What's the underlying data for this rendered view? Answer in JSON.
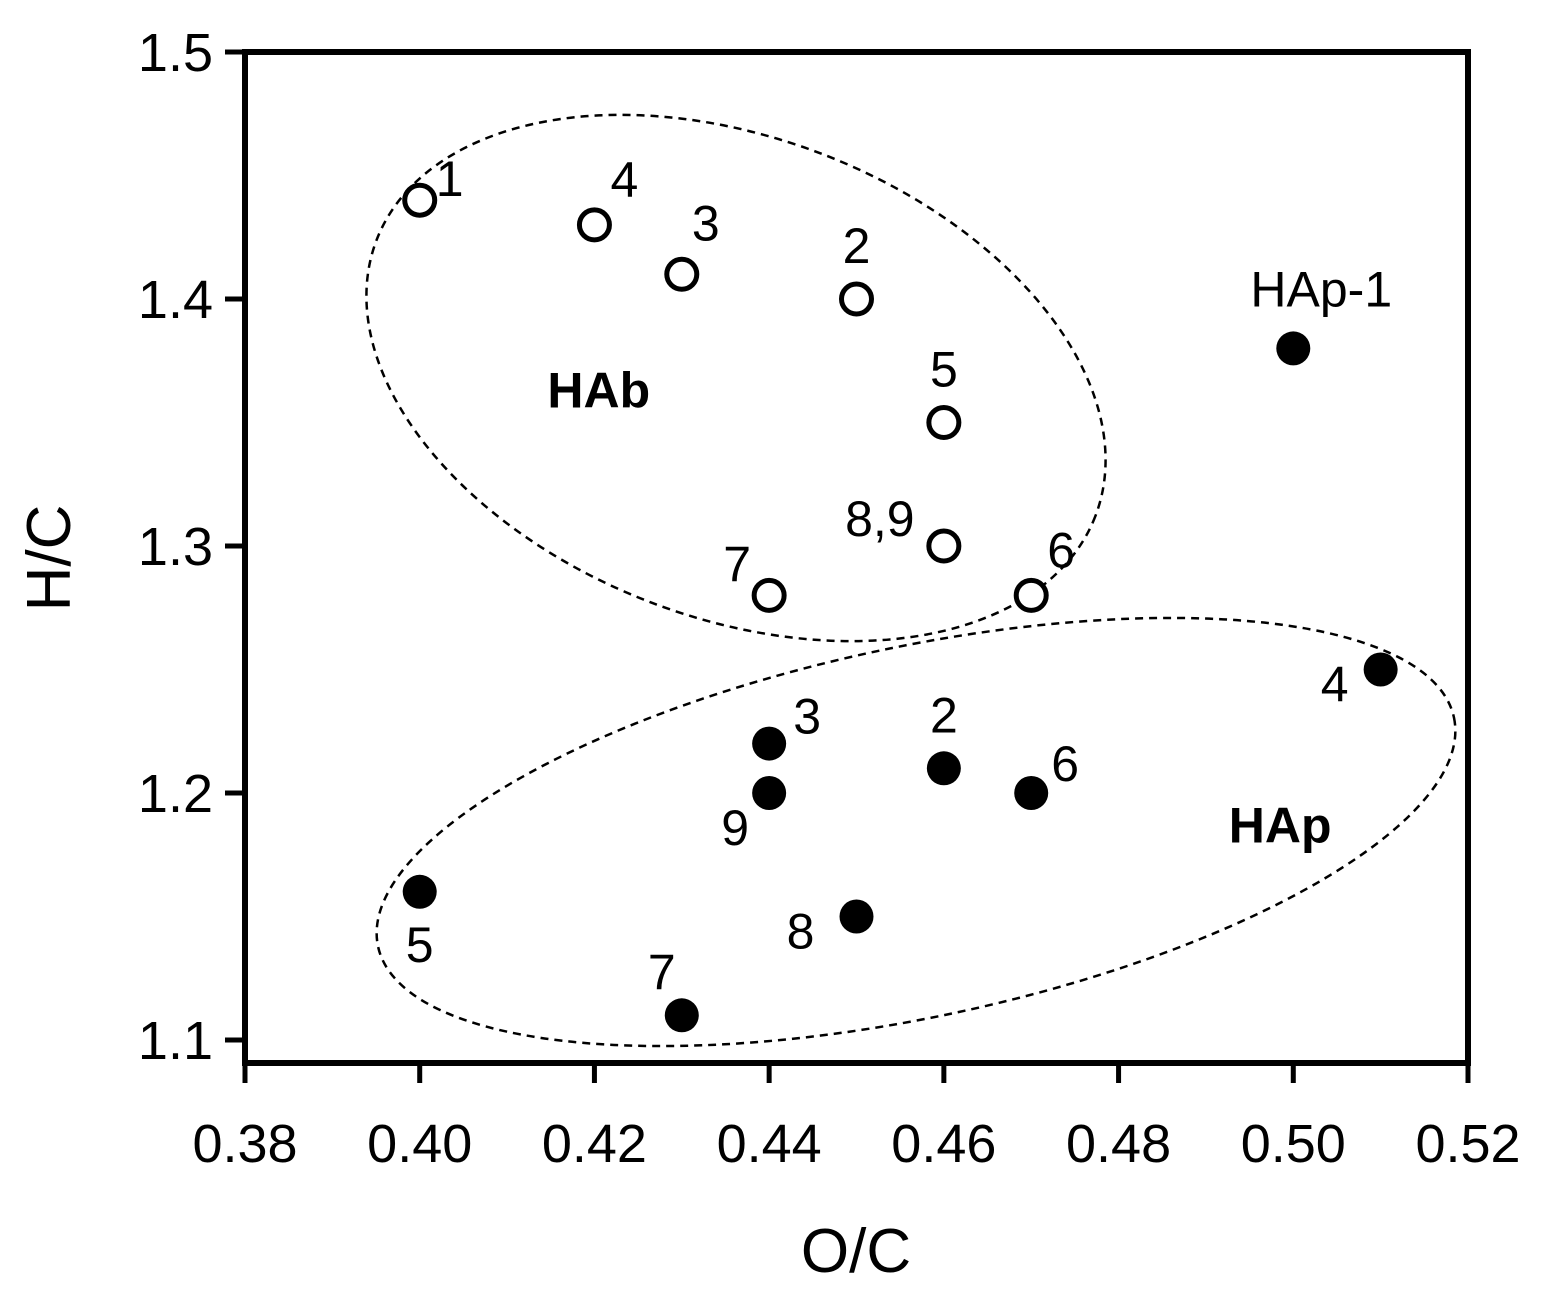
{
  "chart_data": {
    "type": "scatter",
    "xlabel": "O/C",
    "ylabel": "H/C",
    "xlim": [
      0.38,
      0.52
    ],
    "ylim": [
      1.1,
      1.5
    ],
    "x_ticks": [
      "0.38",
      "0.40",
      "0.42",
      "0.44",
      "0.46",
      "0.48",
      "0.50",
      "0.52"
    ],
    "y_ticks": [
      "1.1",
      "1.2",
      "1.3",
      "1.4",
      "1.5"
    ],
    "grid": false,
    "legend": "none",
    "series": [
      {
        "marker": "open-circle",
        "points": [
          {
            "x": 0.4,
            "y": 1.44,
            "label": "1"
          },
          {
            "x": 0.42,
            "y": 1.43,
            "label": "4"
          },
          {
            "x": 0.43,
            "y": 1.41,
            "label": "3"
          },
          {
            "x": 0.45,
            "y": 1.4,
            "label": "2"
          },
          {
            "x": 0.46,
            "y": 1.35,
            "label": "5"
          },
          {
            "x": 0.46,
            "y": 1.3,
            "label": "8,9"
          },
          {
            "x": 0.44,
            "y": 1.28,
            "label": "7"
          },
          {
            "x": 0.47,
            "y": 1.28,
            "label": "6"
          }
        ]
      },
      {
        "marker": "filled-circle",
        "points": [
          {
            "x": 0.5,
            "y": 1.38,
            "label": "HAp-1"
          },
          {
            "x": 0.51,
            "y": 1.25,
            "label": "4"
          },
          {
            "x": 0.44,
            "y": 1.22,
            "label": "3"
          },
          {
            "x": 0.46,
            "y": 1.21,
            "label": "2"
          },
          {
            "x": 0.47,
            "y": 1.2,
            "label": "6"
          },
          {
            "x": 0.44,
            "y": 1.2,
            "label": "9"
          },
          {
            "x": 0.4,
            "y": 1.16,
            "label": "5"
          },
          {
            "x": 0.45,
            "y": 1.15,
            "label": "8"
          },
          {
            "x": 0.43,
            "y": 1.11,
            "label": "7"
          }
        ]
      }
    ],
    "annotations": [
      {
        "text": "HAb",
        "x": 0.4205,
        "y": 1.356,
        "shape": "dashed-ellipse"
      },
      {
        "text": "HAp",
        "x": 0.4985,
        "y": 1.18,
        "shape": "dashed-ellipse"
      }
    ],
    "colors": {
      "open": "#000000",
      "filled": "#000000"
    }
  }
}
